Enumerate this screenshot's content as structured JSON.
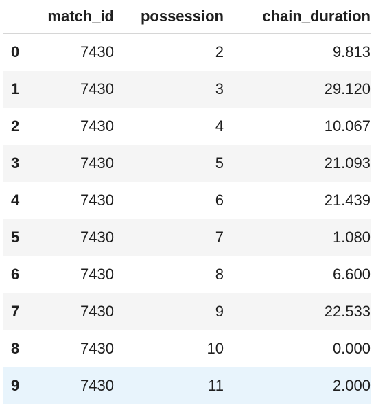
{
  "table": {
    "columns": [
      "",
      "match_id",
      "possession",
      "chain_duration"
    ],
    "rows": [
      {
        "index": "0",
        "match_id": "7430",
        "possession": "2",
        "chain_duration": "9.813"
      },
      {
        "index": "1",
        "match_id": "7430",
        "possession": "3",
        "chain_duration": "29.120"
      },
      {
        "index": "2",
        "match_id": "7430",
        "possession": "4",
        "chain_duration": "10.067"
      },
      {
        "index": "3",
        "match_id": "7430",
        "possession": "5",
        "chain_duration": "21.093"
      },
      {
        "index": "4",
        "match_id": "7430",
        "possession": "6",
        "chain_duration": "21.439"
      },
      {
        "index": "5",
        "match_id": "7430",
        "possession": "7",
        "chain_duration": "1.080"
      },
      {
        "index": "6",
        "match_id": "7430",
        "possession": "8",
        "chain_duration": "6.600"
      },
      {
        "index": "7",
        "match_id": "7430",
        "possession": "9",
        "chain_duration": "22.533"
      },
      {
        "index": "8",
        "match_id": "7430",
        "possession": "10",
        "chain_duration": "0.000"
      },
      {
        "index": "9",
        "match_id": "7430",
        "possession": "11",
        "chain_duration": "2.000"
      }
    ],
    "hover_row": 9,
    "colors": {
      "stripe": "#f5f5f5",
      "hover": "#e8f4fc",
      "header_rule": "#d6d6d6"
    }
  }
}
